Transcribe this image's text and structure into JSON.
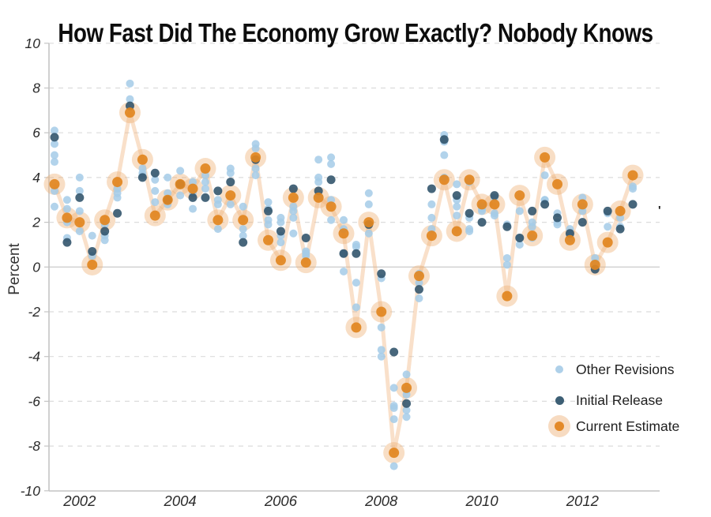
{
  "stray_mark": "'",
  "chart_data": {
    "type": "scatter",
    "title": "How Fast Did The Economy Grow Exactly? Nobody Knows",
    "ylabel": "Percent",
    "ylim": [
      -10,
      10
    ],
    "y_ticks": [
      10,
      8,
      6,
      4,
      2,
      0,
      -2,
      -4,
      -6,
      -8,
      -10
    ],
    "grid": "dashed horizontal lines at every 2 units, solid line at 0",
    "legend_position": "lower right inside plot",
    "x_ticks": [
      {
        "label": "2002",
        "quarter_index": 2
      },
      {
        "label": "2004",
        "quarter_index": 10
      },
      {
        "label": "2006",
        "quarter_index": 18
      },
      {
        "label": "2008",
        "quarter_index": 26
      },
      {
        "label": "2010",
        "quarter_index": 34
      },
      {
        "label": "2012",
        "quarter_index": 42
      }
    ],
    "legend": [
      {
        "label": "Other Revisions",
        "series": "others"
      },
      {
        "label": "Initial Release",
        "series": "initial"
      },
      {
        "label": "Current Estimate",
        "series": "current"
      }
    ],
    "colors": {
      "other_revisions": "#a5cbe7",
      "initial_release": "#2d5169",
      "current_estimate": "#e18520",
      "current_halo": "#eeb075",
      "trend_line": "#efb27a",
      "gridline": "#dcdcdc",
      "zero_line": "#cfcfcf",
      "axis": "#c4c4c4",
      "tick_text": "#2b2b2b"
    },
    "quarters": [
      {
        "q": "2002 Q1",
        "current": 3.7,
        "initial": 5.8,
        "others": [
          6.1,
          5.5,
          5.0,
          4.7,
          3.4,
          2.7
        ]
      },
      {
        "q": "2002 Q2",
        "current": 2.2,
        "initial": 1.1,
        "others": [
          1.3,
          2.0,
          2.6,
          3.0
        ]
      },
      {
        "q": "2002 Q3",
        "current": 2.0,
        "initial": 3.1,
        "others": [
          4.0,
          3.4,
          2.5,
          1.6
        ]
      },
      {
        "q": "2002 Q4",
        "current": 0.1,
        "initial": 0.7,
        "others": [
          1.4,
          0.5
        ]
      },
      {
        "q": "2003 Q1",
        "current": 2.1,
        "initial": 1.6,
        "others": [
          1.4,
          1.2,
          1.9
        ]
      },
      {
        "q": "2003 Q2",
        "current": 3.8,
        "initial": 2.4,
        "others": [
          3.1,
          3.3,
          3.5
        ]
      },
      {
        "q": "2003 Q3",
        "current": 6.9,
        "initial": 7.2,
        "others": [
          8.2,
          7.5
        ]
      },
      {
        "q": "2003 Q4",
        "current": 4.8,
        "initial": 4.0,
        "others": [
          4.1,
          4.2,
          4.4
        ]
      },
      {
        "q": "2004 Q1",
        "current": 2.3,
        "initial": 4.2,
        "others": [
          3.9,
          3.4,
          2.9
        ]
      },
      {
        "q": "2004 Q2",
        "current": 3.0,
        "initial": 3.0,
        "others": [
          4.0,
          3.3,
          2.8
        ]
      },
      {
        "q": "2004 Q3",
        "current": 3.7,
        "initial": 3.7,
        "others": [
          4.3,
          3.2
        ]
      },
      {
        "q": "2004 Q4",
        "current": 3.5,
        "initial": 3.1,
        "others": [
          3.8,
          3.3,
          2.6
        ]
      },
      {
        "q": "2005 Q1",
        "current": 4.4,
        "initial": 3.1,
        "others": [
          3.5,
          3.8,
          4.1
        ]
      },
      {
        "q": "2005 Q2",
        "current": 2.1,
        "initial": 3.4,
        "others": [
          2.8,
          1.7,
          3.0
        ]
      },
      {
        "q": "2005 Q3",
        "current": 3.2,
        "initial": 3.8,
        "others": [
          4.4,
          4.2,
          2.8
        ]
      },
      {
        "q": "2005 Q4",
        "current": 2.1,
        "initial": 1.1,
        "others": [
          2.7,
          1.7,
          1.4
        ]
      },
      {
        "q": "2006 Q1",
        "current": 4.9,
        "initial": 4.8,
        "others": [
          5.5,
          5.3,
          4.4,
          4.1
        ]
      },
      {
        "q": "2006 Q2",
        "current": 1.2,
        "initial": 2.5,
        "others": [
          2.9,
          2.6,
          2.1,
          1.9
        ]
      },
      {
        "q": "2006 Q3",
        "current": 0.3,
        "initial": 1.6,
        "others": [
          2.2,
          2.0,
          1.4,
          1.1
        ]
      },
      {
        "q": "2006 Q4",
        "current": 3.1,
        "initial": 3.5,
        "others": [
          2.5,
          2.2,
          1.5,
          2.7
        ]
      },
      {
        "q": "2007 Q1",
        "current": 0.2,
        "initial": 1.3,
        "others": [
          0.7,
          0.6,
          0.5
        ]
      },
      {
        "q": "2007 Q2",
        "current": 3.1,
        "initial": 3.4,
        "others": [
          4.8,
          4.0,
          3.8,
          3.2
        ]
      },
      {
        "q": "2007 Q3",
        "current": 2.7,
        "initial": 3.9,
        "others": [
          4.9,
          4.6,
          3.0,
          2.1
        ]
      },
      {
        "q": "2007 Q4",
        "current": 1.5,
        "initial": 0.6,
        "others": [
          1.7,
          0.6,
          -0.2,
          2.1
        ]
      },
      {
        "q": "2008 Q1",
        "current": -2.7,
        "initial": 0.6,
        "others": [
          1.0,
          0.9,
          -0.7,
          -1.8
        ]
      },
      {
        "q": "2008 Q2",
        "current": 2.0,
        "initial": 1.9,
        "others": [
          3.3,
          2.8,
          1.5
        ]
      },
      {
        "q": "2008 Q3",
        "current": -2.0,
        "initial": -0.3,
        "others": [
          -0.5,
          -2.7,
          -3.7,
          -4.0
        ]
      },
      {
        "q": "2008 Q4",
        "current": -8.3,
        "initial": -3.8,
        "others": [
          -6.2,
          -6.3,
          -5.4,
          -6.8,
          -8.9
        ]
      },
      {
        "q": "2009 Q1",
        "current": -5.4,
        "initial": -6.1,
        "others": [
          -5.7,
          -5.5,
          -4.8,
          -6.4,
          -6.7
        ]
      },
      {
        "q": "2009 Q2",
        "current": -0.4,
        "initial": -1.0,
        "others": [
          -0.7,
          -1.4,
          -0.3
        ]
      },
      {
        "q": "2009 Q3",
        "current": 1.4,
        "initial": 3.5,
        "others": [
          2.8,
          2.2,
          1.7
        ]
      },
      {
        "q": "2009 Q4",
        "current": 3.9,
        "initial": 5.7,
        "others": [
          5.9,
          5.6,
          5.0,
          4.0
        ]
      },
      {
        "q": "2010 Q1",
        "current": 1.6,
        "initial": 3.2,
        "others": [
          3.7,
          3.0,
          2.7,
          2.3
        ]
      },
      {
        "q": "2010 Q2",
        "current": 3.9,
        "initial": 2.4,
        "others": [
          1.6,
          1.7,
          2.2,
          3.8
        ]
      },
      {
        "q": "2010 Q3",
        "current": 2.8,
        "initial": 2.0,
        "others": [
          2.5,
          2.6,
          2.7
        ]
      },
      {
        "q": "2010 Q4",
        "current": 2.8,
        "initial": 3.2,
        "others": [
          3.1,
          2.4,
          2.3
        ]
      },
      {
        "q": "2011 Q1",
        "current": -1.3,
        "initial": 1.8,
        "others": [
          1.9,
          0.4,
          0.1
        ]
      },
      {
        "q": "2011 Q2",
        "current": 3.2,
        "initial": 1.3,
        "others": [
          1.0,
          1.3,
          2.5
        ]
      },
      {
        "q": "2011 Q3",
        "current": 1.4,
        "initial": 2.5,
        "others": [
          2.0,
          1.8,
          1.3
        ]
      },
      {
        "q": "2011 Q4",
        "current": 4.9,
        "initial": 2.8,
        "others": [
          3.0,
          3.0,
          4.1
        ]
      },
      {
        "q": "2012 Q1",
        "current": 3.7,
        "initial": 2.2,
        "others": [
          1.9,
          2.0,
          2.4
        ]
      },
      {
        "q": "2012 Q2",
        "current": 1.2,
        "initial": 1.5,
        "others": [
          1.7,
          1.4,
          1.3
        ]
      },
      {
        "q": "2012 Q3",
        "current": 2.8,
        "initial": 2.0,
        "others": [
          2.7,
          3.1,
          2.5
        ]
      },
      {
        "q": "2012 Q4",
        "current": 0.1,
        "initial": -0.1,
        "others": [
          0.4,
          0.2
        ]
      },
      {
        "q": "2013 Q1",
        "current": 1.1,
        "initial": 2.5,
        "others": [
          2.4,
          1.8
        ]
      },
      {
        "q": "2013 Q2",
        "current": 2.5,
        "initial": 1.7,
        "others": [
          1.8,
          2.2
        ]
      },
      {
        "q": "2013 Q3",
        "current": 4.1,
        "initial": 2.8,
        "others": [
          3.6,
          3.5
        ]
      }
    ]
  }
}
